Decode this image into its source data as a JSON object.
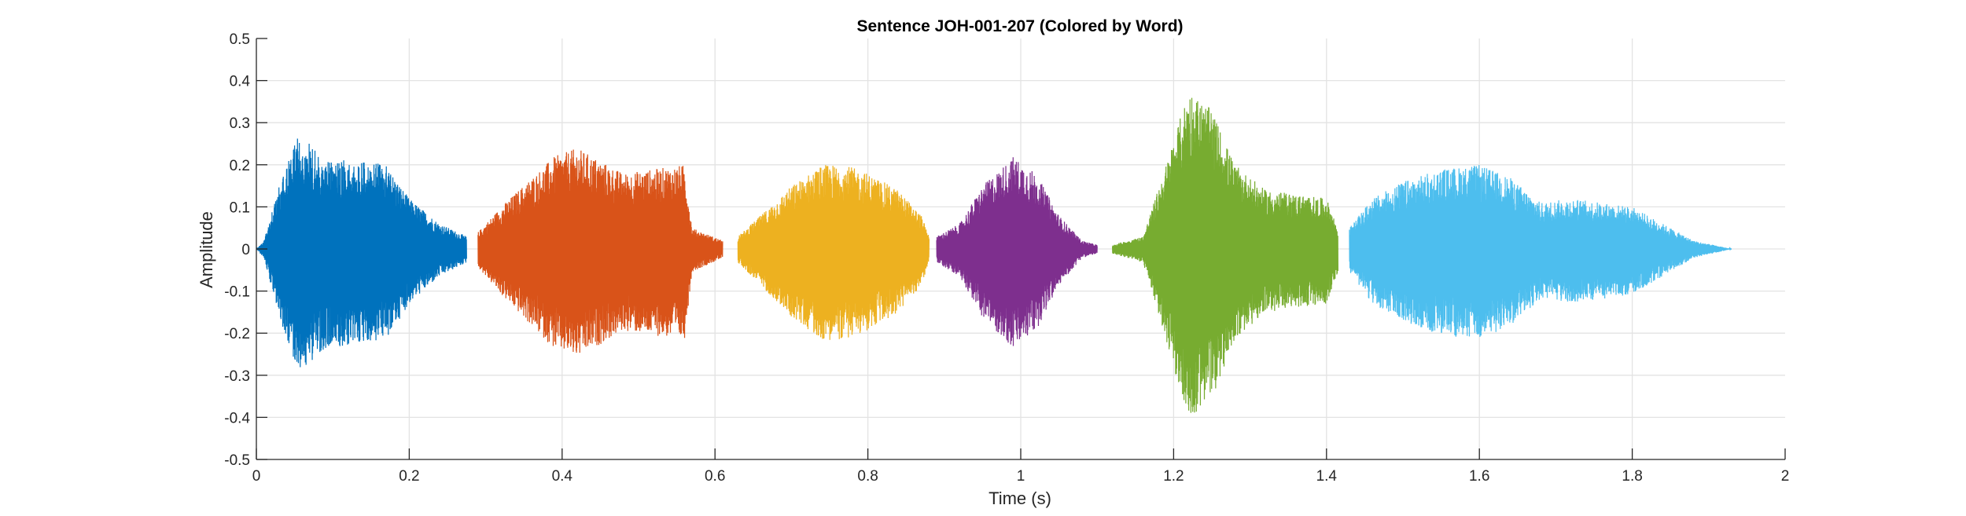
{
  "chart_data": {
    "type": "line",
    "title": "Sentence JOH-001-207 (Colored by Word)",
    "xlabel": "Time (s)",
    "ylabel": "Amplitude",
    "xlim": [
      0,
      2
    ],
    "ylim": [
      -0.5,
      0.5
    ],
    "grid": true,
    "x_ticks": [
      0,
      0.2,
      0.4,
      0.6,
      0.8,
      1,
      1.2,
      1.4,
      1.6,
      1.8,
      2
    ],
    "x_tick_labels": [
      "0",
      "0.2",
      "0.4",
      "0.6",
      "0.8",
      "1",
      "1.2",
      "1.4",
      "1.6",
      "1.8",
      "2"
    ],
    "y_ticks": [
      0.5,
      0.4,
      0.3,
      0.2,
      0.1,
      0,
      -0.1,
      -0.2,
      -0.3,
      -0.4,
      -0.5
    ],
    "y_tick_labels": [
      "0.5",
      "0.4",
      "0.3",
      "0.2",
      "0.1",
      "0",
      "-0.1",
      "-0.2",
      "-0.3",
      "-0.4",
      "-0.5"
    ],
    "series": [
      {
        "color": "#0072BD",
        "x_start": 0.0,
        "x_end": 0.275,
        "envelope": [
          [
            0.0,
            0.0
          ],
          [
            0.01,
            0.02
          ],
          [
            0.03,
            0.15
          ],
          [
            0.055,
            0.27
          ],
          [
            0.09,
            0.22
          ],
          [
            0.13,
            0.21
          ],
          [
            0.17,
            0.2
          ],
          [
            0.2,
            0.12
          ],
          [
            0.24,
            0.06
          ],
          [
            0.275,
            0.03
          ]
        ]
      },
      {
        "color": "#D95319",
        "x_start": 0.29,
        "x_end": 0.61,
        "envelope": [
          [
            0.29,
            0.04
          ],
          [
            0.32,
            0.1
          ],
          [
            0.36,
            0.17
          ],
          [
            0.39,
            0.22
          ],
          [
            0.42,
            0.24
          ],
          [
            0.44,
            0.22
          ],
          [
            0.48,
            0.18
          ],
          [
            0.52,
            0.19
          ],
          [
            0.56,
            0.2
          ],
          [
            0.57,
            0.05
          ],
          [
            0.61,
            0.02
          ]
        ]
      },
      {
        "color": "#EDB120",
        "x_start": 0.63,
        "x_end": 0.88,
        "envelope": [
          [
            0.63,
            0.03
          ],
          [
            0.66,
            0.08
          ],
          [
            0.7,
            0.15
          ],
          [
            0.74,
            0.2
          ],
          [
            0.77,
            0.2
          ],
          [
            0.8,
            0.18
          ],
          [
            0.84,
            0.14
          ],
          [
            0.87,
            0.08
          ],
          [
            0.88,
            0.03
          ]
        ]
      },
      {
        "color": "#7E2F8E",
        "x_start": 0.89,
        "x_end": 1.1,
        "envelope": [
          [
            0.89,
            0.03
          ],
          [
            0.92,
            0.06
          ],
          [
            0.95,
            0.15
          ],
          [
            0.99,
            0.22
          ],
          [
            1.02,
            0.18
          ],
          [
            1.05,
            0.08
          ],
          [
            1.08,
            0.02
          ],
          [
            1.1,
            0.01
          ]
        ]
      },
      {
        "color": "#77AC30",
        "x_start": 1.12,
        "x_end": 1.415,
        "envelope": [
          [
            1.12,
            0.01
          ],
          [
            1.16,
            0.03
          ],
          [
            1.19,
            0.2
          ],
          [
            1.22,
            0.38
          ],
          [
            1.25,
            0.33
          ],
          [
            1.28,
            0.2
          ],
          [
            1.32,
            0.14
          ],
          [
            1.36,
            0.13
          ],
          [
            1.4,
            0.12
          ],
          [
            1.415,
            0.05
          ]
        ]
      },
      {
        "color": "#4DBEEE",
        "x_start": 1.43,
        "x_end": 1.93,
        "envelope": [
          [
            1.43,
            0.05
          ],
          [
            1.46,
            0.12
          ],
          [
            1.5,
            0.16
          ],
          [
            1.55,
            0.19
          ],
          [
            1.6,
            0.2
          ],
          [
            1.64,
            0.17
          ],
          [
            1.68,
            0.11
          ],
          [
            1.72,
            0.12
          ],
          [
            1.76,
            0.11
          ],
          [
            1.8,
            0.1
          ],
          [
            1.84,
            0.06
          ],
          [
            1.88,
            0.02
          ],
          [
            1.93,
            0.0
          ]
        ]
      }
    ]
  }
}
